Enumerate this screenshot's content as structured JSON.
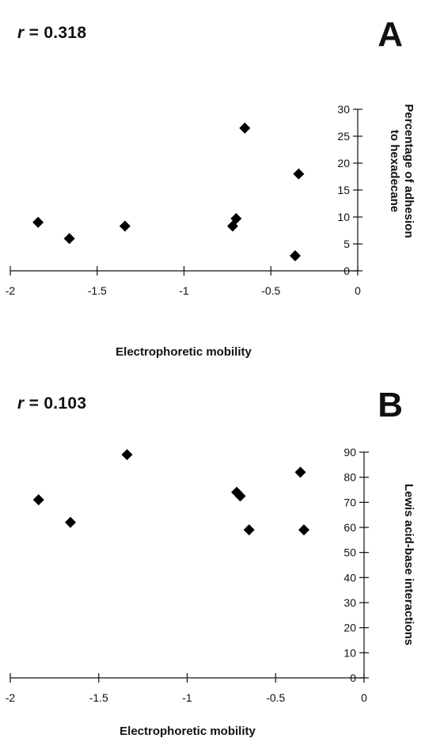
{
  "chart_data": [
    {
      "panel_label": "A",
      "type": "scatter",
      "annotation": {
        "symbol": "r",
        "text": " = 0.318"
      },
      "xlabel": "Electrophoretic mobility",
      "ylabel": [
        "Percentage of adhesion",
        "to hexadecane"
      ],
      "xlim": [
        -2,
        0
      ],
      "ylim": [
        0,
        30
      ],
      "x_ticks": [
        -2,
        -1.5,
        -1,
        -0.5,
        0
      ],
      "x_tick_labels": [
        "-2",
        "-1.5",
        "-1",
        "-0.5",
        "0"
      ],
      "y_ticks": [
        0,
        5,
        10,
        15,
        20,
        25,
        30
      ],
      "y_tick_labels": [
        "0",
        "5",
        "10",
        "15",
        "20",
        "25",
        "30"
      ],
      "marker": "diamond",
      "grid": false,
      "points": [
        {
          "x": -1.84,
          "y": 9.0
        },
        {
          "x": -1.66,
          "y": 6.0
        },
        {
          "x": -1.34,
          "y": 8.3
        },
        {
          "x": -0.72,
          "y": 8.3
        },
        {
          "x": -0.7,
          "y": 9.7
        },
        {
          "x": -0.65,
          "y": 26.5
        },
        {
          "x": -0.36,
          "y": 2.8
        },
        {
          "x": -0.34,
          "y": 18.0
        }
      ]
    },
    {
      "panel_label": "B",
      "type": "scatter",
      "annotation": {
        "symbol": "r",
        "text": " = 0.103"
      },
      "xlabel": "Electrophoretic mobility",
      "ylabel": [
        "Lewis acid-base interactions"
      ],
      "xlim": [
        -2,
        0
      ],
      "ylim": [
        0,
        90
      ],
      "x_ticks": [
        -2,
        -1.5,
        -1,
        -0.5,
        0
      ],
      "x_tick_labels": [
        "-2",
        "-1.5",
        "-1",
        "-0.5",
        "0"
      ],
      "y_ticks": [
        0,
        10,
        20,
        30,
        40,
        50,
        60,
        70,
        80,
        90
      ],
      "y_tick_labels": [
        "0",
        "10",
        "20",
        "30",
        "40",
        "50",
        "60",
        "70",
        "80",
        "90"
      ],
      "marker": "diamond",
      "grid": false,
      "points": [
        {
          "x": -1.84,
          "y": 71
        },
        {
          "x": -1.66,
          "y": 62
        },
        {
          "x": -1.34,
          "y": 89
        },
        {
          "x": -0.72,
          "y": 74
        },
        {
          "x": -0.7,
          "y": 72.5
        },
        {
          "x": -0.65,
          "y": 59
        },
        {
          "x": -0.36,
          "y": 82
        },
        {
          "x": -0.34,
          "y": 59
        }
      ]
    }
  ]
}
